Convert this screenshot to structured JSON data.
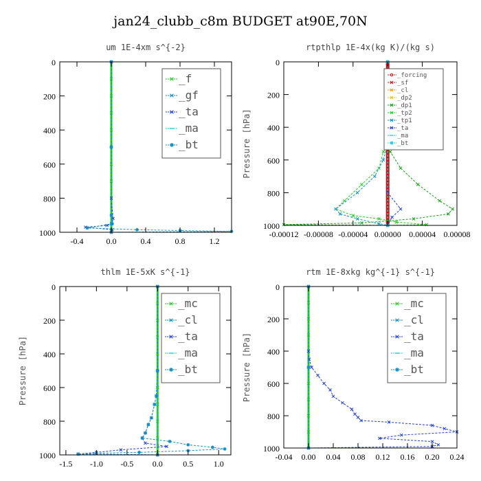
{
  "title": "jan24_clubb_c8m  BUDGET at90E,70N",
  "colors": {
    "green": "#22cc22",
    "blue": "#1f3fd9",
    "teal": "#0f8fc4",
    "cyan": "#17cfe0",
    "red": "#c81414",
    "darkgreen": "#12a012",
    "orange": "#ff9900",
    "yellow": "#e6c800"
  },
  "chart_data": [
    {
      "type": "line",
      "title": "um   1E-4xm  s^{-2}",
      "ylabel": "",
      "xlim": [
        -0.6,
        1.4
      ],
      "ylim": [
        0,
        1000
      ],
      "xticks": [
        -0.4,
        0.0,
        0.4,
        0.8,
        1.2
      ],
      "xtick_labels": [
        "-0.4",
        "0.0",
        "0.4",
        "0.8",
        "1.2"
      ],
      "yticks": [
        0,
        200,
        400,
        600,
        800,
        1000
      ],
      "legend_position": "top-right",
      "legend_size": "large",
      "series": [
        {
          "name": "_f",
          "color": "#22cc22",
          "marker": "x",
          "points": [
            [
              0,
              0
            ],
            [
              0,
              100
            ],
            [
              0,
              200
            ],
            [
              0,
              300
            ],
            [
              0,
              400
            ],
            [
              0,
              500
            ],
            [
              0,
              600
            ],
            [
              0,
              700
            ],
            [
              0,
              800
            ],
            [
              0,
              900
            ],
            [
              0,
              950
            ],
            [
              0,
              1000
            ]
          ]
        },
        {
          "name": "_gf",
          "color": "#0f8fc4",
          "marker": "x",
          "points": [
            [
              0,
              0
            ],
            [
              0,
              500
            ],
            [
              0,
              950
            ],
            [
              0,
              1000
            ]
          ]
        },
        {
          "name": "_ta",
          "color": "#1f3fd9",
          "marker": "x",
          "points": [
            [
              0,
              0
            ],
            [
              0,
              800
            ],
            [
              0.02,
              920
            ],
            [
              0.01,
              950
            ],
            [
              -0.05,
              960
            ],
            [
              -0.3,
              970
            ],
            [
              0.01,
              985
            ],
            [
              0,
              1000
            ]
          ]
        },
        {
          "name": "_ma",
          "color": "#17cfe0",
          "marker": "dash",
          "points": [
            [
              0,
              0
            ],
            [
              0,
              500
            ],
            [
              0,
              950
            ],
            [
              0,
              1000
            ]
          ]
        },
        {
          "name": "_bt",
          "color": "#0f8fc4",
          "marker": "star",
          "points": [
            [
              0,
              0
            ],
            [
              0,
              500
            ],
            [
              0,
              900
            ],
            [
              0.01,
              950
            ],
            [
              -0.28,
              975
            ],
            [
              0.3,
              985
            ],
            [
              0.8,
              990
            ],
            [
              1.4,
              995
            ],
            [
              0,
              1000
            ]
          ]
        }
      ]
    },
    {
      "type": "line",
      "title": "rtpthlp   1E-4x(kg K)/(kg s)",
      "ylabel": "Pressure [hPa]",
      "xlim": [
        -0.00012,
        8e-05
      ],
      "ylim": [
        0,
        1000
      ],
      "xticks": [
        -0.00012,
        -8e-05,
        -4e-05,
        0.0,
        4e-05,
        8e-05
      ],
      "xtick_labels": [
        "-0.00012",
        "-0.00008",
        "-0.00004",
        "0.00000",
        "0.00004",
        "0.00008"
      ],
      "yticks": [
        0,
        200,
        400,
        600,
        800,
        1000
      ],
      "legend_position": "top-right",
      "legend_size": "small",
      "series": [
        {
          "name": "_forcing",
          "color": "#c81414",
          "marker": "o",
          "points": [
            [
              0,
              0
            ],
            [
              0,
              100
            ],
            [
              0,
              200
            ],
            [
              0,
              300
            ],
            [
              0,
              400
            ],
            [
              0,
              500
            ],
            [
              0,
              600
            ],
            [
              0,
              700
            ],
            [
              0,
              800
            ],
            [
              0,
              900
            ],
            [
              0,
              1000
            ]
          ]
        },
        {
          "name": "_sf",
          "color": "#c81414",
          "marker": "x",
          "points": [
            [
              0,
              0
            ],
            [
              0,
              500
            ],
            [
              0,
              1000
            ]
          ]
        },
        {
          "name": "_cl",
          "color": "#ff9900",
          "marker": "x",
          "points": [
            [
              0,
              0
            ],
            [
              0,
              500
            ],
            [
              0,
              1000
            ]
          ]
        },
        {
          "name": "_dp2",
          "color": "#e6c800",
          "marker": "x",
          "points": [
            [
              0,
              0
            ],
            [
              0,
              500
            ],
            [
              0,
              1000
            ]
          ]
        },
        {
          "name": "_dp1",
          "color": "#12a012",
          "marker": "x",
          "points": [
            [
              0,
              0
            ],
            [
              0,
              500
            ],
            [
              3e-06,
              550
            ],
            [
              1.5e-05,
              650
            ],
            [
              3.5e-05,
              750
            ],
            [
              6e-05,
              850
            ],
            [
              7.5e-05,
              900
            ],
            [
              7e-05,
              930
            ],
            [
              3e-05,
              960
            ],
            [
              -3e-05,
              985
            ],
            [
              -0.00012,
              995
            ],
            [
              0,
              1000
            ]
          ]
        },
        {
          "name": "_tp2",
          "color": "#22cc22",
          "marker": "x",
          "points": [
            [
              0,
              0
            ],
            [
              0,
              500
            ],
            [
              -5e-06,
              550
            ],
            [
              -1e-05,
              650
            ],
            [
              -3e-05,
              750
            ],
            [
              -5e-05,
              850
            ],
            [
              -6e-05,
              900
            ],
            [
              -4e-05,
              940
            ],
            [
              -1e-05,
              960
            ],
            [
              1e-05,
              980
            ],
            [
              4.5e-05,
              995
            ],
            [
              0,
              1000
            ]
          ]
        },
        {
          "name": "_tp1",
          "color": "#0f8fc4",
          "marker": "x",
          "points": [
            [
              0,
              0
            ],
            [
              0,
              500
            ],
            [
              -5e-06,
              600
            ],
            [
              -1.5e-05,
              700
            ],
            [
              -3.5e-05,
              800
            ],
            [
              -6e-05,
              900
            ],
            [
              -5.5e-05,
              930
            ],
            [
              -3.5e-05,
              960
            ],
            [
              -1e-05,
              990
            ],
            [
              0,
              1000
            ]
          ]
        },
        {
          "name": "_ta",
          "color": "#1f3fd9",
          "marker": "x",
          "points": [
            [
              0,
              0
            ],
            [
              0,
              800
            ],
            [
              1.5e-05,
              900
            ],
            [
              5e-06,
              950
            ],
            [
              0,
              1000
            ]
          ]
        },
        {
          "name": "_ma",
          "color": "#17cfe0",
          "marker": "dash",
          "points": [
            [
              0,
              0
            ],
            [
              0,
              500
            ],
            [
              0,
              1000
            ]
          ]
        },
        {
          "name": "_bt",
          "color": "#17cfe0",
          "marker": "star",
          "points": [
            [
              0,
              0
            ],
            [
              0,
              500
            ],
            [
              0,
              1000
            ]
          ]
        }
      ]
    },
    {
      "type": "line",
      "title": "thlm   1E-5xK  s^{-1}",
      "ylabel": "Pressure [hPa]",
      "xlim": [
        -1.6,
        1.2
      ],
      "ylim": [
        0,
        1000
      ],
      "xticks": [
        -1.5,
        -1.0,
        -0.5,
        0.0,
        0.5,
        1.0
      ],
      "xtick_labels": [
        "-1.5",
        "-1.0",
        "-0.5",
        "0.0",
        "0.5",
        "1.0"
      ],
      "yticks": [
        0,
        200,
        400,
        600,
        800,
        1000
      ],
      "legend_position": "top-right",
      "legend_size": "large",
      "series": [
        {
          "name": "_mc",
          "color": "#22cc22",
          "marker": "x",
          "points": [
            [
              0,
              0
            ],
            [
              0,
              100
            ],
            [
              0,
              200
            ],
            [
              0,
              300
            ],
            [
              0,
              400
            ],
            [
              0,
              500
            ],
            [
              0,
              600
            ],
            [
              0,
              700
            ],
            [
              0,
              800
            ],
            [
              0,
              900
            ],
            [
              0,
              1000
            ]
          ]
        },
        {
          "name": "_cl",
          "color": "#0f8fc4",
          "marker": "x",
          "points": [
            [
              0,
              0
            ],
            [
              0,
              500
            ],
            [
              0,
              1000
            ]
          ]
        },
        {
          "name": "_ta",
          "color": "#1f3fd9",
          "marker": "x",
          "points": [
            [
              0,
              0
            ],
            [
              0,
              500
            ],
            [
              -0.02,
              650
            ],
            [
              -0.05,
              700
            ],
            [
              -0.1,
              780
            ],
            [
              -0.15,
              820
            ],
            [
              -0.2,
              870
            ],
            [
              -0.25,
              900
            ],
            [
              -0.2,
              930
            ],
            [
              0.15,
              950
            ],
            [
              -0.6,
              970
            ],
            [
              -1.0,
              985
            ],
            [
              -1.3,
              995
            ],
            [
              0,
              1000
            ]
          ]
        },
        {
          "name": "_ma",
          "color": "#17cfe0",
          "marker": "dash",
          "points": [
            [
              0,
              0
            ],
            [
              0,
              500
            ],
            [
              0,
              1000
            ]
          ]
        },
        {
          "name": "_bt",
          "color": "#0f8fc4",
          "marker": "star",
          "points": [
            [
              0,
              0
            ],
            [
              0,
              500
            ],
            [
              -0.02,
              650
            ],
            [
              -0.05,
              700
            ],
            [
              -0.1,
              780
            ],
            [
              -0.15,
              820
            ],
            [
              -0.2,
              870
            ],
            [
              -0.25,
              900
            ],
            [
              0.2,
              920
            ],
            [
              0.5,
              940
            ],
            [
              0.9,
              955
            ],
            [
              1.1,
              965
            ],
            [
              0.5,
              975
            ],
            [
              -0.3,
              985
            ],
            [
              -1.0,
              990
            ],
            [
              -1.3,
              995
            ],
            [
              0,
              1000
            ]
          ]
        }
      ]
    },
    {
      "type": "line",
      "title": "rtm   1E-8xkg  kg^{-1}  s^{-1}",
      "ylabel": "Pressure [hPa]",
      "xlim": [
        -0.04,
        0.24
      ],
      "ylim": [
        0,
        1000
      ],
      "xticks": [
        -0.04,
        0.0,
        0.04,
        0.08,
        0.12,
        0.16,
        0.2,
        0.24
      ],
      "xtick_labels": [
        "-0.04",
        "0.00",
        "0.04",
        "0.08",
        "0.12",
        "0.16",
        "0.20",
        "0.24"
      ],
      "yticks": [
        0,
        200,
        400,
        600,
        800,
        1000
      ],
      "legend_position": "top-right",
      "legend_size": "large",
      "series": [
        {
          "name": "_mc",
          "color": "#22cc22",
          "marker": "x",
          "points": [
            [
              0,
              0
            ],
            [
              0,
              100
            ],
            [
              0,
              200
            ],
            [
              0,
              300
            ],
            [
              0,
              400
            ],
            [
              0,
              500
            ],
            [
              0,
              600
            ],
            [
              0,
              700
            ],
            [
              0,
              800
            ],
            [
              0,
              900
            ],
            [
              0,
              1000
            ]
          ]
        },
        {
          "name": "_cl",
          "color": "#0f8fc4",
          "marker": "x",
          "points": [
            [
              0,
              0
            ],
            [
              0,
              500
            ],
            [
              0,
              1000
            ]
          ]
        },
        {
          "name": "_ta",
          "color": "#1f3fd9",
          "marker": "x",
          "points": [
            [
              0,
              0
            ],
            [
              0,
              400
            ],
            [
              0.001,
              450
            ],
            [
              0.005,
              500
            ],
            [
              0.015,
              550
            ],
            [
              0.025,
              600
            ],
            [
              0.035,
              640
            ],
            [
              0.04,
              680
            ],
            [
              0.055,
              720
            ],
            [
              0.07,
              760
            ],
            [
              0.075,
              790
            ],
            [
              0.08,
              810
            ],
            [
              0.085,
              830
            ],
            [
              0.13,
              840
            ],
            [
              0.2,
              860
            ],
            [
              0.22,
              880
            ],
            [
              0.24,
              900
            ],
            [
              0.15,
              920
            ],
            [
              0.115,
              940
            ],
            [
              0.2,
              960
            ],
            [
              0.21,
              980
            ],
            [
              0.2,
              990
            ],
            [
              0,
              1000
            ]
          ]
        },
        {
          "name": "_ma",
          "color": "#17cfe0",
          "marker": "dash",
          "points": [
            [
              0,
              0
            ],
            [
              0,
              500
            ],
            [
              0,
              1000
            ]
          ]
        },
        {
          "name": "_bt",
          "color": "#0f8fc4",
          "marker": "star",
          "points": [
            [
              0,
              0
            ],
            [
              0,
              500
            ],
            [
              0,
              1000
            ]
          ]
        }
      ]
    }
  ]
}
